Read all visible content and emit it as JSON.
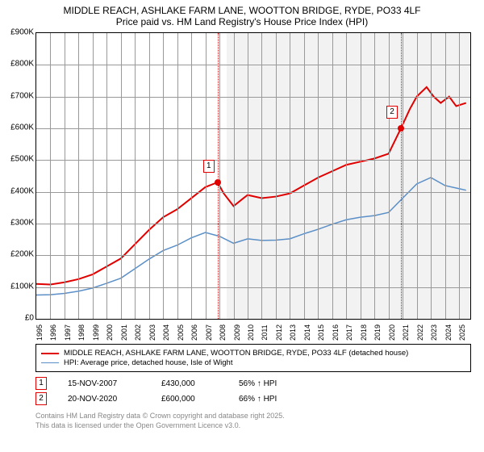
{
  "title": {
    "line1": "MIDDLE REACH, ASHLAKE FARM LANE, WOOTTON BRIDGE, RYDE, PO33 4LF",
    "line2": "Price paid vs. HM Land Registry's House Price Index (HPI)"
  },
  "chart": {
    "type": "line",
    "background_color": "#ffffff",
    "grid_color": "#999999",
    "border_color": "#000000",
    "y_axis": {
      "min": 0,
      "max": 900000,
      "ticks": [
        0,
        100000,
        200000,
        300000,
        400000,
        500000,
        600000,
        700000,
        800000,
        900000
      ],
      "labels": [
        "£0",
        "£100K",
        "£200K",
        "£300K",
        "£400K",
        "£500K",
        "£600K",
        "£700K",
        "£800K",
        "£900K"
      ],
      "fontsize": 10
    },
    "x_axis": {
      "min": 1995,
      "max": 2025.8,
      "ticks": [
        1995,
        1996,
        1997,
        1998,
        1999,
        2000,
        2001,
        2002,
        2003,
        2004,
        2005,
        2006,
        2007,
        2008,
        2009,
        2010,
        2011,
        2012,
        2013,
        2014,
        2015,
        2016,
        2017,
        2018,
        2019,
        2020,
        2021,
        2022,
        2023,
        2024,
        2025
      ],
      "fontsize": 9
    },
    "shade_from_year": 2008.5,
    "shade_color": "rgba(230,230,230,0.5)",
    "series": [
      {
        "name": "property",
        "label": "MIDDLE REACH, ASHLAKE FARM LANE, WOOTTON BRIDGE, RYDE, PO33 4LF (detached house)",
        "color": "#e00000",
        "line_width": 2,
        "data": [
          [
            1995,
            110000
          ],
          [
            1996,
            108000
          ],
          [
            1997,
            115000
          ],
          [
            1998,
            125000
          ],
          [
            1999,
            140000
          ],
          [
            2000,
            165000
          ],
          [
            2001,
            190000
          ],
          [
            2002,
            235000
          ],
          [
            2003,
            280000
          ],
          [
            2004,
            320000
          ],
          [
            2005,
            345000
          ],
          [
            2006,
            380000
          ],
          [
            2007,
            415000
          ],
          [
            2007.87,
            430000
          ],
          [
            2008.3,
            395000
          ],
          [
            2009,
            355000
          ],
          [
            2009.7,
            380000
          ],
          [
            2010,
            390000
          ],
          [
            2011,
            380000
          ],
          [
            2012,
            385000
          ],
          [
            2013,
            395000
          ],
          [
            2014,
            420000
          ],
          [
            2015,
            445000
          ],
          [
            2016,
            465000
          ],
          [
            2017,
            485000
          ],
          [
            2018,
            495000
          ],
          [
            2019,
            505000
          ],
          [
            2020,
            520000
          ],
          [
            2020.88,
            600000
          ],
          [
            2021.5,
            660000
          ],
          [
            2022,
            700000
          ],
          [
            2022.7,
            730000
          ],
          [
            2023.2,
            700000
          ],
          [
            2023.7,
            680000
          ],
          [
            2024.3,
            700000
          ],
          [
            2024.8,
            670000
          ],
          [
            2025.5,
            680000
          ]
        ]
      },
      {
        "name": "hpi",
        "label": "HPI: Average price, detached house, Isle of Wight",
        "color": "#5b8fc7",
        "line_width": 1.5,
        "data": [
          [
            1995,
            75000
          ],
          [
            1996,
            76000
          ],
          [
            1997,
            80000
          ],
          [
            1998,
            87000
          ],
          [
            1999,
            97000
          ],
          [
            2000,
            112000
          ],
          [
            2001,
            128000
          ],
          [
            2002,
            158000
          ],
          [
            2003,
            188000
          ],
          [
            2004,
            215000
          ],
          [
            2005,
            232000
          ],
          [
            2006,
            255000
          ],
          [
            2007,
            272000
          ],
          [
            2008,
            260000
          ],
          [
            2009,
            238000
          ],
          [
            2010,
            252000
          ],
          [
            2011,
            247000
          ],
          [
            2012,
            248000
          ],
          [
            2013,
            252000
          ],
          [
            2014,
            268000
          ],
          [
            2015,
            282000
          ],
          [
            2016,
            298000
          ],
          [
            2017,
            312000
          ],
          [
            2018,
            320000
          ],
          [
            2019,
            325000
          ],
          [
            2020,
            335000
          ],
          [
            2021,
            380000
          ],
          [
            2022,
            425000
          ],
          [
            2023,
            445000
          ],
          [
            2024,
            420000
          ],
          [
            2025,
            410000
          ],
          [
            2025.5,
            405000
          ]
        ]
      }
    ],
    "sale_markers": [
      {
        "n": "1",
        "year": 2007.87,
        "value": 430000,
        "color": "#e00000"
      },
      {
        "n": "2",
        "year": 2020.88,
        "value": 600000,
        "color": "#e00000"
      }
    ]
  },
  "legend": {
    "items": [
      {
        "color": "#e00000",
        "width": 2,
        "text": "MIDDLE REACH, ASHLAKE FARM LANE, WOOTTON BRIDGE, RYDE, PO33 4LF (detached house)"
      },
      {
        "color": "#5b8fc7",
        "width": 1.5,
        "text": "HPI: Average price, detached house, Isle of Wight"
      }
    ]
  },
  "sales": [
    {
      "n": "1",
      "color": "#e00000",
      "date": "15-NOV-2007",
      "price": "£430,000",
      "pct": "56% ↑ HPI"
    },
    {
      "n": "2",
      "color": "#e00000",
      "date": "20-NOV-2020",
      "price": "£600,000",
      "pct": "66% ↑ HPI"
    }
  ],
  "footer": {
    "line1": "Contains HM Land Registry data © Crown copyright and database right 2025.",
    "line2": "This data is licensed under the Open Government Licence v3.0."
  }
}
